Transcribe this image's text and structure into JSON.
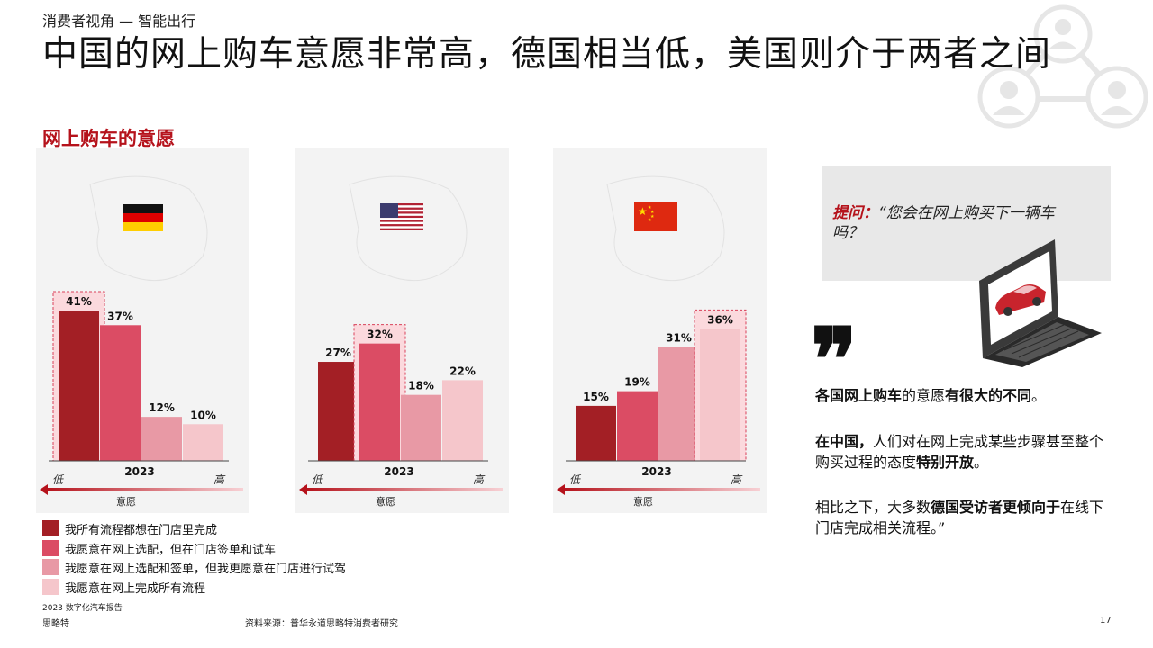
{
  "header": {
    "section_label": "消费者视角 — 智能出行",
    "title": "中国的网上购车意愿非常高，德国相当低，美国则介于两者之间",
    "subtitle": "网上购车的意愿"
  },
  "colors": {
    "accent": "#b5121b",
    "series": [
      "#a31f25",
      "#db4c64",
      "#e899a5",
      "#f5c6cb"
    ]
  },
  "chart_data": [
    {
      "type": "bar",
      "country": "Germany",
      "flag": "germany-flag",
      "categories": [
        "我所有流程都想在门店里完成",
        "我愿意在网上选配，但在门店签单和试车",
        "我愿意在网上选配和签单，但我更愿意在门店进行试驾",
        "我愿意在网上完成所有流程"
      ],
      "values": [
        41,
        37,
        12,
        10
      ],
      "value_labels": [
        "41%",
        "37%",
        "12%",
        "10%"
      ],
      "highlight_index": 0,
      "xlabel": "2023",
      "axis_low": "低",
      "axis_high": "高",
      "axis_caption": "意愿",
      "ylim": [
        0,
        41
      ]
    },
    {
      "type": "bar",
      "country": "USA",
      "flag": "usa-flag",
      "categories": [
        "我所有流程都想在门店里完成",
        "我愿意在网上选配，但在门店签单和试车",
        "我愿意在网上选配和签单，但我更愿意在门店进行试驾",
        "我愿意在网上完成所有流程"
      ],
      "values": [
        27,
        32,
        18,
        22
      ],
      "value_labels": [
        "27%",
        "32%",
        "18%",
        "22%"
      ],
      "highlight_index": 1,
      "xlabel": "2023",
      "axis_low": "低",
      "axis_high": "高",
      "axis_caption": "意愿",
      "ylim": [
        0,
        41
      ]
    },
    {
      "type": "bar",
      "country": "China",
      "flag": "china-flag",
      "categories": [
        "我所有流程都想在门店里完成",
        "我愿意在网上选配，但在门店签单和试车",
        "我愿意在网上选配和签单，但我更愿意在门店进行试驾",
        "我愿意在网上完成所有流程"
      ],
      "values": [
        15,
        19,
        31,
        36
      ],
      "value_labels": [
        "15%",
        "19%",
        "31%",
        "36%"
      ],
      "highlight_index": 3,
      "xlabel": "2023",
      "axis_low": "低",
      "axis_high": "高",
      "axis_caption": "意愿",
      "ylim": [
        0,
        41
      ]
    }
  ],
  "legend": [
    {
      "label": "我所有流程都想在门店里完成",
      "color": "#a31f25"
    },
    {
      "label": "我愿意在网上选配，但在门店签单和试车",
      "color": "#db4c64"
    },
    {
      "label": "我愿意在网上选配和签单，但我更愿意在门店进行试驾",
      "color": "#e899a5"
    },
    {
      "label": "我愿意在网上完成所有流程",
      "color": "#f5c6cb"
    }
  ],
  "question": {
    "label": "提问：",
    "text": "“您会在网上购买下一辆车吗？"
  },
  "paragraphs": {
    "p1": {
      "a": "各国网上购车",
      "b": "的意愿",
      "c": "有很大的不同",
      "d": "。"
    },
    "p2": {
      "a": "在中国，",
      "b": "人们对在网上完成某些步骤甚至整个购买过程的态度",
      "c": "特别开放",
      "d": "。"
    },
    "p3": {
      "a": "相比之下，大多数",
      "b": "德国受访者更倾向于",
      "c": "在线下门店完成相关流程。”"
    }
  },
  "footer": {
    "report": "2023 数字化汽车报告",
    "brand": "思略特",
    "source": "资料来源：普华永道思略特消费者研究",
    "page": "17"
  },
  "icons": {
    "people_network": "people-network-icon",
    "laptop_car": "laptop-car-icon",
    "quote": "quote-icon"
  }
}
